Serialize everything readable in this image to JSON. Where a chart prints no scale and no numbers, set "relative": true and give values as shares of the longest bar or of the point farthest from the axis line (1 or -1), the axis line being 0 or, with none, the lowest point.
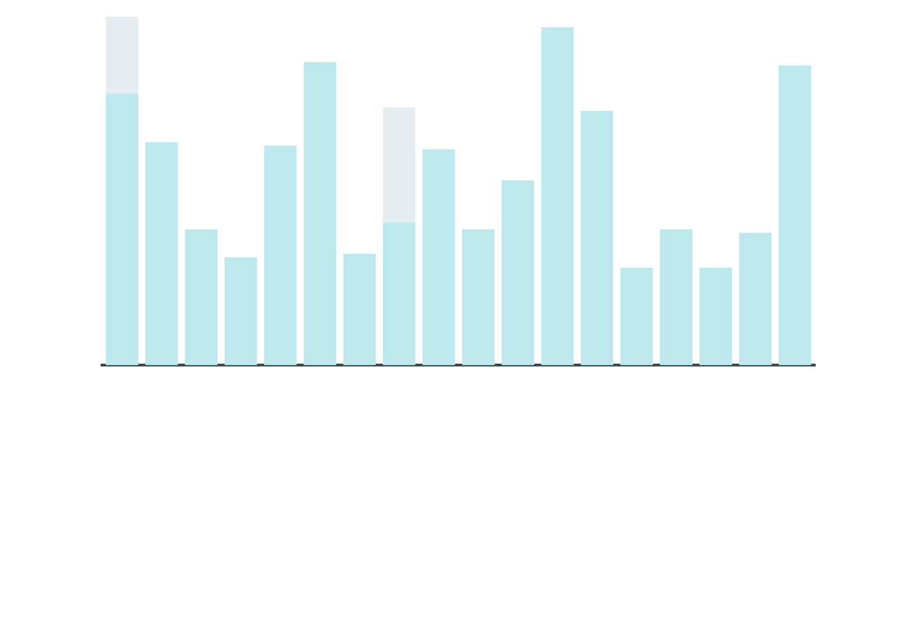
{
  "chart_data": {
    "type": "bar",
    "relative": true,
    "stacked": true,
    "categories": [
      null,
      null,
      null,
      null,
      null,
      null,
      null,
      null,
      null,
      null,
      null,
      null,
      null,
      null,
      null,
      null,
      null,
      null
    ],
    "series": [
      {
        "color": "#bde8ee",
        "values": [
          0.78,
          0.64,
          0.39,
          0.31,
          0.63,
          0.87,
          0.32,
          0.41,
          0.62,
          0.39,
          0.53,
          0.97,
          0.73,
          0.28,
          0.39,
          0.28,
          0.38,
          0.86
        ]
      },
      {
        "color": "#e6edf0",
        "values": [
          0.22,
          null,
          null,
          null,
          null,
          null,
          null,
          0.33,
          null,
          null,
          null,
          null,
          null,
          null,
          null,
          null,
          null,
          null
        ]
      }
    ]
  }
}
